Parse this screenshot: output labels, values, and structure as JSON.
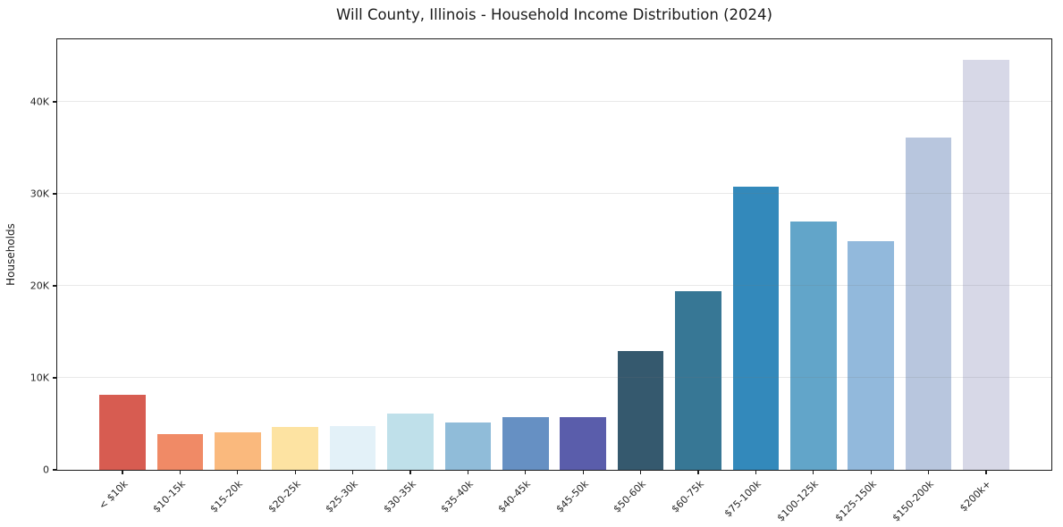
{
  "chart_data": {
    "type": "bar",
    "title": "Will County, Illinois - Household Income Distribution (2024)",
    "xlabel": "",
    "ylabel": "Households",
    "categories": [
      "< $10k",
      "$10-15k",
      "$15-20k",
      "$20-25k",
      "$25-30k",
      "$30-35k",
      "$35-40k",
      "$40-45k",
      "$45-50k",
      "$50-60k",
      "$60-75k",
      "$75-100k",
      "$100-125k",
      "$125-150k",
      "$150-200k",
      "$200k+"
    ],
    "values": [
      8200,
      3900,
      4100,
      4700,
      4800,
      6100,
      5100,
      5700,
      5750,
      12900,
      19400,
      30800,
      27000,
      24900,
      36100,
      44600
    ],
    "bar_colors": [
      "#d75c51",
      "#f08a66",
      "#fab97d",
      "#fde3a2",
      "#e3f1f8",
      "#bfe0ea",
      "#90bcd9",
      "#6690c3",
      "#5a5dab",
      "#35596e",
      "#377795",
      "#3389bb",
      "#62a5c9",
      "#92b9dc",
      "#b8c6de",
      "#d7d8e7"
    ],
    "ylim": [
      0,
      47000
    ],
    "yticks": [
      {
        "value": 0,
        "label": "0"
      },
      {
        "value": 10000,
        "label": "10K"
      },
      {
        "value": 20000,
        "label": "20K"
      },
      {
        "value": 30000,
        "label": "30K"
      },
      {
        "value": 40000,
        "label": "40K"
      }
    ],
    "gridline_values": [
      10000,
      20000,
      30000,
      40000
    ],
    "grid": "horizontal",
    "legend": "none",
    "background": "#ffffff",
    "spine_color": "#1c1c1c",
    "gridline_color": "#eaeaea"
  }
}
